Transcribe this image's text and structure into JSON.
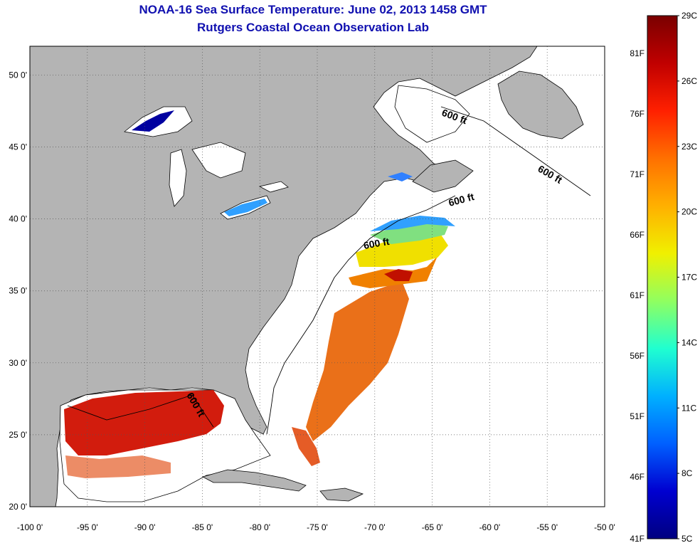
{
  "header": {
    "title": "NOAA-16 Sea Surface Temperature:  June 02, 2013 1458 GMT",
    "subtitle": "Rutgers Coastal Ocean Observation Lab"
  },
  "axes": {
    "y_ticks": [
      "50 0'",
      "45 0'",
      "40 0'",
      "35 0'",
      "30 0'",
      "25 0'",
      "20 0'"
    ],
    "x_ticks": [
      "-100 0'",
      "-95 0'",
      "-90 0'",
      "-85 0'",
      "-80 0'",
      "-75 0'",
      "-70 0'",
      "-65 0'",
      "-60 0'",
      "-55 0'",
      "-50 0'"
    ],
    "lon_range": [
      -100,
      -50
    ],
    "lat_range": [
      20,
      52
    ]
  },
  "contours": {
    "label": "600 ft",
    "count": 5
  },
  "colorbar": {
    "celsius_ticks": [
      "29C",
      "26C",
      "23C",
      "20C",
      "17C",
      "14C",
      "11C",
      "8C",
      "5C"
    ],
    "fahrenheit_ticks": [
      "81F",
      "76F",
      "71F",
      "66F",
      "61F",
      "56F",
      "51F",
      "46F",
      "41F"
    ],
    "colors": [
      "#7a0000",
      "#c00000",
      "#ff2000",
      "#ff7000",
      "#ffb000",
      "#f0f000",
      "#90ff60",
      "#20ffd0",
      "#00b0ff",
      "#0060ff",
      "#0000d0",
      "#000080"
    ]
  },
  "colors": {
    "land": "#b4b4b4",
    "ocean": "#ffffff",
    "warm_gulf": "#d01000",
    "gulf_stream": "#e86000",
    "cool_shelf": "#30a0ff",
    "title": "#1010b0"
  }
}
